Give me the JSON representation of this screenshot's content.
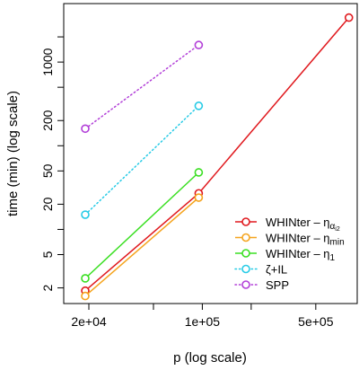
{
  "chart_data": {
    "type": "line",
    "xlabel": "p (log scale)",
    "ylabel": "time (min) (log scale)",
    "xscale": "log",
    "yscale": "log",
    "xlim": [
      14000,
      900000
    ],
    "ylim": [
      1.3,
      5000
    ],
    "xticks": [
      {
        "value": 20000,
        "label": "2e+04"
      },
      {
        "value": 100000,
        "label": "1e+05"
      },
      {
        "value": 500000,
        "label": "5e+05"
      }
    ],
    "yticks": [
      {
        "value": 2,
        "label": "2"
      },
      {
        "value": 5,
        "label": "5"
      },
      {
        "value": 20,
        "label": "20"
      },
      {
        "value": 50,
        "label": "50"
      },
      {
        "value": 200,
        "label": "200"
      },
      {
        "value": 1000,
        "label": "1000"
      }
    ],
    "extra_xticks": [
      50000,
      200000
    ],
    "extra_yticks": [
      10,
      100,
      500,
      2000
    ],
    "grid": false,
    "legend_position": "bottom-right",
    "series": [
      {
        "name": "WHINter – η",
        "sub": "α",
        "subsub": "i2",
        "color": "#e0191e",
        "linestyle": "solid",
        "x": [
          19000,
          95000,
          800000
        ],
        "y": [
          1.85,
          27,
          3400
        ]
      },
      {
        "name": "WHINter – η",
        "sub": "min",
        "subsub": "",
        "color": "#f5a41e",
        "linestyle": "solid",
        "x": [
          19000,
          95000
        ],
        "y": [
          1.6,
          24
        ]
      },
      {
        "name": "WHINter – η",
        "sub": "1",
        "subsub": "",
        "color": "#3adf22",
        "linestyle": "solid",
        "x": [
          19000,
          95000
        ],
        "y": [
          2.6,
          48
        ]
      },
      {
        "name": "ζ+IL",
        "sub": "",
        "subsub": "",
        "color": "#27cbe6",
        "linestyle": "dotted",
        "x": [
          19000,
          95000
        ],
        "y": [
          15,
          300
        ]
      },
      {
        "name": "SPP",
        "sub": "",
        "subsub": "",
        "color": "#b23fd8",
        "linestyle": "dotted",
        "x": [
          19000,
          95000
        ],
        "y": [
          160,
          1600
        ]
      }
    ]
  }
}
